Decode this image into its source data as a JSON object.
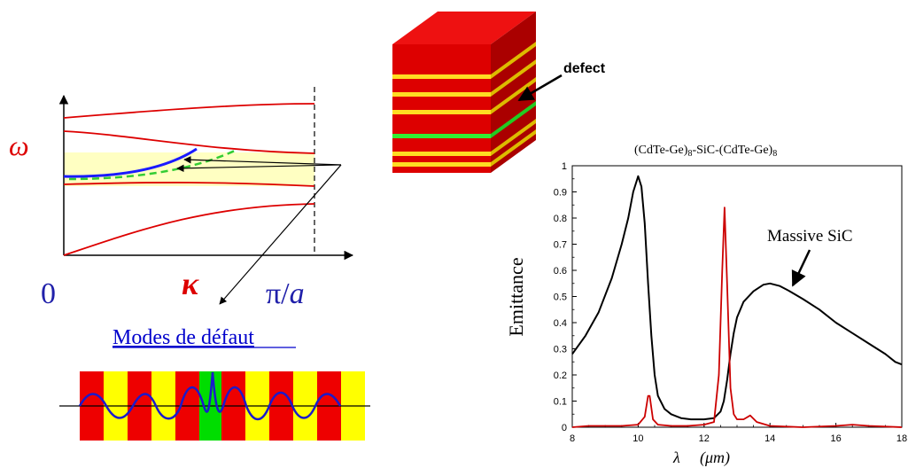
{
  "dispersion": {
    "omega": "ω",
    "kappa": "κ",
    "zero": "0",
    "pi_over": "π/",
    "a": "a"
  },
  "defect_modes_label": "Modes de défaut",
  "crystal_defect_label": "defect",
  "chart_data": {
    "type": "line",
    "title_parts": [
      "(CdTe-Ge)",
      "8",
      "-SiC-(CdTe-Ge)",
      "8"
    ],
    "xlabel_symbol": "λ",
    "xlabel_unit": "(μm)",
    "ylabel": "Emittance",
    "xlim": [
      8,
      18
    ],
    "ylim": [
      0,
      1
    ],
    "x_ticks": [
      "8",
      "10",
      "12",
      "14",
      "16",
      "18"
    ],
    "y_ticks": [
      "0",
      "0.1",
      "0.2",
      "0.3",
      "0.4",
      "0.5",
      "0.6",
      "0.7",
      "0.8",
      "0.9",
      "1"
    ],
    "annotation": "Massive SiC",
    "series": [
      {
        "color": "#000000",
        "x": [
          8.0,
          8.4,
          8.8,
          9.2,
          9.5,
          9.7,
          9.85,
          10.0,
          10.1,
          10.2,
          10.3,
          10.4,
          10.5,
          10.6,
          10.8,
          11.0,
          11.3,
          11.6,
          12.0,
          12.3,
          12.5,
          12.6,
          12.7,
          12.8,
          12.9,
          13.0,
          13.2,
          13.5,
          13.8,
          14.0,
          14.3,
          14.6,
          15.0,
          15.5,
          16.0,
          16.5,
          17.0,
          17.5,
          17.8,
          18.0
        ],
        "y": [
          0.28,
          0.35,
          0.44,
          0.57,
          0.7,
          0.8,
          0.9,
          0.96,
          0.92,
          0.78,
          0.55,
          0.35,
          0.2,
          0.12,
          0.07,
          0.05,
          0.035,
          0.03,
          0.03,
          0.035,
          0.06,
          0.1,
          0.18,
          0.28,
          0.36,
          0.42,
          0.48,
          0.52,
          0.545,
          0.55,
          0.54,
          0.52,
          0.49,
          0.45,
          0.4,
          0.36,
          0.32,
          0.28,
          0.25,
          0.24
        ]
      },
      {
        "color": "#cc0000",
        "x": [
          8.0,
          8.5,
          9.0,
          9.5,
          10.0,
          10.2,
          10.3,
          10.35,
          10.45,
          10.6,
          11.0,
          11.5,
          12.0,
          12.3,
          12.45,
          12.55,
          12.62,
          12.7,
          12.8,
          12.9,
          13.0,
          13.2,
          13.4,
          13.6,
          14.0,
          15.0,
          16.0,
          16.5,
          17.0,
          18.0
        ],
        "y": [
          0.0,
          0.005,
          0.005,
          0.005,
          0.01,
          0.04,
          0.12,
          0.12,
          0.03,
          0.01,
          0.005,
          0.005,
          0.01,
          0.02,
          0.2,
          0.6,
          0.84,
          0.55,
          0.15,
          0.05,
          0.03,
          0.03,
          0.045,
          0.02,
          0.005,
          0.0,
          0.005,
          0.01,
          0.005,
          0.0
        ]
      }
    ]
  }
}
